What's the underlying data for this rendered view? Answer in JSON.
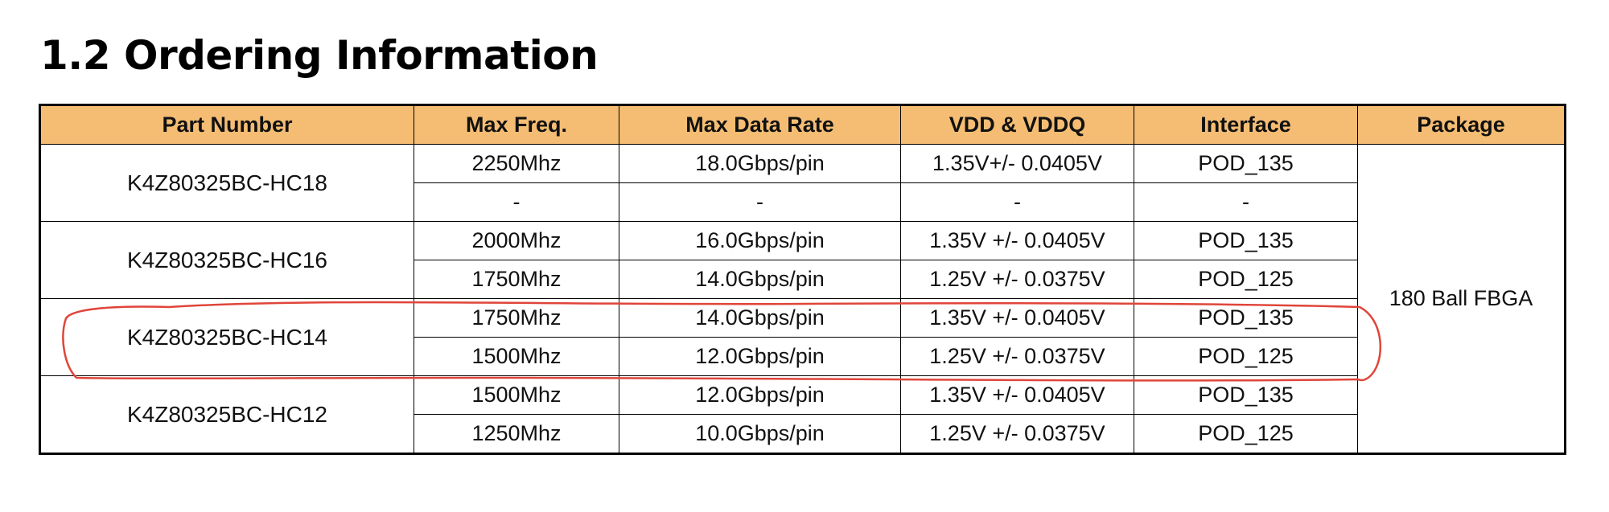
{
  "title": "1.2 Ordering Information",
  "headers": [
    "Part Number",
    "Max Freq.",
    "Max Data Rate",
    "VDD & VDDQ",
    "Interface",
    "Package"
  ],
  "package": "180 Ball FBGA",
  "parts": [
    {
      "part_number": "K4Z80325BC-HC18",
      "rows": [
        {
          "freq": "2250Mhz",
          "rate": "18.0Gbps/pin",
          "vdd": "1.35V+/- 0.0405V",
          "iface": "POD_135"
        },
        {
          "freq": "-",
          "rate": "-",
          "vdd": "-",
          "iface": "-"
        }
      ]
    },
    {
      "part_number": "K4Z80325BC-HC16",
      "rows": [
        {
          "freq": "2000Mhz",
          "rate": "16.0Gbps/pin",
          "vdd": "1.35V +/- 0.0405V",
          "iface": "POD_135"
        },
        {
          "freq": "1750Mhz",
          "rate": "14.0Gbps/pin",
          "vdd": "1.25V +/- 0.0375V",
          "iface": "POD_125"
        }
      ]
    },
    {
      "part_number": "K4Z80325BC-HC14",
      "rows": [
        {
          "freq": "1750Mhz",
          "rate": "14.0Gbps/pin",
          "vdd": "1.35V +/- 0.0405V",
          "iface": "POD_135"
        },
        {
          "freq": "1500Mhz",
          "rate": "12.0Gbps/pin",
          "vdd": "1.25V +/- 0.0375V",
          "iface": "POD_125"
        }
      ]
    },
    {
      "part_number": "K4Z80325BC-HC12",
      "rows": [
        {
          "freq": "1500Mhz",
          "rate": "12.0Gbps/pin",
          "vdd": "1.35V +/- 0.0405V",
          "iface": "POD_135"
        },
        {
          "freq": "1250Mhz",
          "rate": "10.0Gbps/pin",
          "vdd": "1.25V +/- 0.0375V",
          "iface": "POD_125"
        }
      ]
    }
  ],
  "colors": {
    "header_bg": "#f5bd73",
    "annotation": "#e0453a"
  }
}
